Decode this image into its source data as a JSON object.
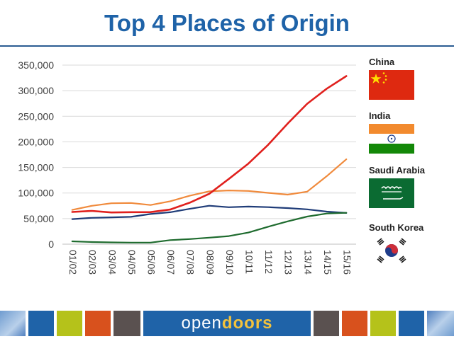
{
  "title": "Top 4 Places of Origin",
  "brand": {
    "part1": "open",
    "part2": "doors"
  },
  "legend": [
    {
      "name": "China",
      "flag": "china-flag"
    },
    {
      "name": "India",
      "flag": "india-flag"
    },
    {
      "name": "Saudi Arabia",
      "flag": "saudi-arabia-flag"
    },
    {
      "name": "South Korea",
      "flag": "south-korea-flag"
    }
  ],
  "colors": {
    "title": "#1f63a8",
    "footer_blue": "#1f63a8",
    "footer_green": "#b5c21a",
    "footer_orange": "#d8511d",
    "footer_gray": "#5a5150",
    "gridline": "#d9d9d9"
  },
  "chart_data": {
    "type": "line",
    "title": "Top 4 Places of Origin",
    "xlabel": "",
    "ylabel": "",
    "ylim": [
      0,
      350000
    ],
    "yticks": [
      0,
      50000,
      100000,
      150000,
      200000,
      250000,
      300000,
      350000
    ],
    "ytick_labels": [
      "0",
      "50,000",
      "100,000",
      "150,000",
      "200,000",
      "250,000",
      "300,000",
      "350,000"
    ],
    "grid": true,
    "legend_placement": "right",
    "categories": [
      "01/02",
      "02/03",
      "03/04",
      "04/05",
      "05/06",
      "06/07",
      "07/08",
      "08/09",
      "09/10",
      "10/11",
      "11/12",
      "12/13",
      "13/14",
      "14/15",
      "15/16"
    ],
    "series": [
      {
        "name": "China",
        "color": "#e0201d",
        "values": [
          63000,
          65000,
          62000,
          62500,
          62600,
          67700,
          81100,
          98500,
          127600,
          157600,
          194000,
          235600,
          274400,
          304000,
          328500
        ]
      },
      {
        "name": "India",
        "color": "#f08a3c",
        "values": [
          67000,
          75000,
          80000,
          80500,
          76500,
          83800,
          94600,
          103300,
          105000,
          104000,
          100300,
          96800,
          102700,
          132900,
          165900
        ]
      },
      {
        "name": "Saudi Arabia",
        "color": "#1e6b2e",
        "values": [
          5600,
          4200,
          3500,
          3000,
          3000,
          7900,
          9900,
          12700,
          15800,
          22700,
          34100,
          44600,
          53900,
          59900,
          61300
        ]
      },
      {
        "name": "South Korea",
        "color": "#1f3c78",
        "values": [
          49000,
          51500,
          52500,
          53400,
          59000,
          62400,
          69100,
          75100,
          72200,
          73400,
          72300,
          70600,
          68000,
          63700,
          61000
        ]
      }
    ]
  }
}
